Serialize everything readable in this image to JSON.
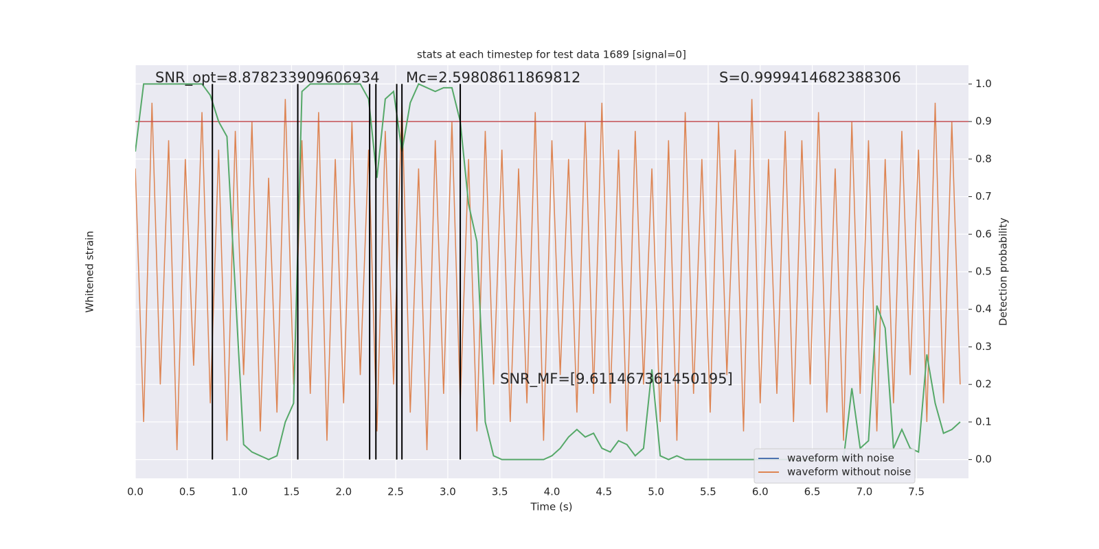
{
  "chart_data": {
    "type": "line",
    "title": "stats at each timestep for test data 1689 [signal=0]",
    "xlabel": "Time (s)",
    "ylabel": "Whitened strain",
    "y2label": "Detection probability",
    "xlim": [
      0,
      8
    ],
    "xticks": [
      {
        "value": 0,
        "label": "0.0"
      },
      {
        "value": 0.5,
        "label": "0.5"
      },
      {
        "value": 1,
        "label": "1.0"
      },
      {
        "value": 1.5,
        "label": "1.5"
      },
      {
        "value": 2,
        "label": "2.0"
      },
      {
        "value": 2.5,
        "label": "2.5"
      },
      {
        "value": 3,
        "label": "3.0"
      },
      {
        "value": 3.5,
        "label": "3.5"
      },
      {
        "value": 4,
        "label": "4.0"
      },
      {
        "value": 4.5,
        "label": "4.5"
      },
      {
        "value": 5,
        "label": "5.0"
      },
      {
        "value": 5.5,
        "label": "5.5"
      },
      {
        "value": 6,
        "label": "6.0"
      },
      {
        "value": 6.5,
        "label": "6.5"
      },
      {
        "value": 7,
        "label": "7.0"
      },
      {
        "value": 7.5,
        "label": "7.5"
      }
    ],
    "ylim": [
      -1.1,
      1.1
    ],
    "y2lim": [
      -0.05,
      1.05
    ],
    "y2ticks": [
      {
        "value": 0,
        "label": "0.0"
      },
      {
        "value": 0.1,
        "label": "0.1"
      },
      {
        "value": 0.2,
        "label": "0.2"
      },
      {
        "value": 0.3,
        "label": "0.3"
      },
      {
        "value": 0.4,
        "label": "0.4"
      },
      {
        "value": 0.5,
        "label": "0.5"
      },
      {
        "value": 0.6,
        "label": "0.6"
      },
      {
        "value": 0.7,
        "label": "0.7"
      },
      {
        "value": 0.8,
        "label": "0.8"
      },
      {
        "value": 0.9,
        "label": "0.9"
      },
      {
        "value": 1,
        "label": "1.0"
      }
    ],
    "grid": true,
    "legend": "lower right",
    "x": [
      0,
      0.08,
      0.16,
      0.24,
      0.32,
      0.4,
      0.48,
      0.56,
      0.64,
      0.72,
      0.8,
      0.88,
      0.96,
      1.04,
      1.12,
      1.2,
      1.28,
      1.36,
      1.44,
      1.52,
      1.6,
      1.68,
      1.76,
      1.84,
      1.92,
      2,
      2.08,
      2.16,
      2.24,
      2.32,
      2.4,
      2.48,
      2.56,
      2.64,
      2.72,
      2.8,
      2.88,
      2.96,
      3.04,
      3.12,
      3.2,
      3.28,
      3.36,
      3.44,
      3.52,
      3.6,
      3.68,
      3.76,
      3.84,
      3.92,
      4,
      4.08,
      4.16,
      4.24,
      4.32,
      4.4,
      4.48,
      4.56,
      4.64,
      4.72,
      4.8,
      4.88,
      4.96,
      5.04,
      5.12,
      5.2,
      5.28,
      5.36,
      5.44,
      5.52,
      5.6,
      5.68,
      5.76,
      5.84,
      5.92,
      6,
      6.08,
      6.16,
      6.24,
      6.32,
      6.4,
      6.48,
      6.56,
      6.64,
      6.72,
      6.8,
      6.88,
      6.96,
      7.04,
      7.12,
      7.2,
      7.28,
      7.36,
      7.44,
      7.52,
      7.6,
      7.68,
      7.76,
      7.84,
      7.92
    ],
    "series": [
      {
        "name": "waveform with noise",
        "color": "#4c72b0",
        "values": [
          null,
          null,
          null,
          null,
          null,
          null,
          null,
          null,
          null,
          null,
          null,
          null,
          null,
          null,
          null,
          null,
          null,
          null,
          null,
          null,
          null,
          null,
          null,
          null,
          null,
          null,
          null,
          null,
          null,
          null,
          null,
          null,
          null,
          null,
          null,
          null,
          null,
          null,
          null,
          null,
          null,
          null,
          null,
          null,
          null,
          null,
          null,
          null,
          null,
          null,
          null,
          null,
          null,
          null,
          null,
          null,
          null,
          null,
          null,
          null,
          null,
          null,
          null,
          null,
          null,
          null,
          null,
          null,
          null,
          null,
          null,
          null,
          null,
          null,
          null,
          null,
          null,
          null,
          null,
          null,
          null,
          null,
          null,
          null,
          null,
          null,
          null,
          null,
          null,
          null,
          null,
          null,
          null,
          null,
          null,
          null,
          null,
          null,
          null,
          null
        ]
      },
      {
        "name": "waveform without noise",
        "color": "#dd8452",
        "values": [
          0.55,
          -0.8,
          0.9,
          -0.6,
          0.7,
          -0.95,
          0.6,
          -0.5,
          0.85,
          -0.7,
          0.65,
          -0.9,
          0.75,
          -0.55,
          0.8,
          -0.85,
          0.5,
          -0.75,
          0.92,
          -0.6,
          0.7,
          -0.65,
          0.85,
          -0.9,
          0.6,
          -0.7,
          0.8,
          -0.55,
          0.65,
          -0.85,
          0.75,
          -0.6,
          0.9,
          -0.75,
          0.55,
          -0.95,
          0.7,
          -0.65,
          0.8,
          -0.7,
          0.6,
          -0.85,
          0.75,
          -0.6,
          0.65,
          -0.8,
          0.55,
          -0.7,
          0.85,
          -0.9,
          0.7,
          -0.55,
          0.6,
          -0.75,
          0.8,
          -0.65,
          0.9,
          -0.7,
          0.65,
          -0.85,
          0.75,
          -0.6,
          0.55,
          -0.8,
          0.7,
          -0.9,
          0.85,
          -0.65,
          0.6,
          -0.75,
          0.8,
          -0.55,
          0.65,
          -0.85,
          0.92,
          -0.7,
          0.6,
          -0.65,
          0.75,
          -0.8,
          0.7,
          -0.6,
          0.85,
          -0.75,
          0.55,
          -0.9,
          0.8,
          -0.65,
          0.7,
          -0.85,
          0.6,
          -0.7,
          0.75,
          -0.55,
          0.65,
          -0.8,
          0.9,
          -0.7,
          0.8,
          -0.6
        ]
      },
      {
        "color": "#55a868",
        "axis": "y2",
        "values": [
          0.82,
          1,
          1,
          1,
          1,
          1,
          1,
          1,
          1,
          0.97,
          0.9,
          0.86,
          0.45,
          0.04,
          0.02,
          0.01,
          0,
          0.01,
          0.1,
          0.15,
          0.98,
          1,
          1,
          1,
          1,
          1,
          1,
          1,
          0.96,
          0.75,
          0.96,
          0.98,
          0.82,
          0.95,
          1,
          0.99,
          0.98,
          0.99,
          0.99,
          0.9,
          0.68,
          0.58,
          0.1,
          0.01,
          0,
          0,
          0,
          0,
          0,
          0,
          0.01,
          0.03,
          0.06,
          0.08,
          0.06,
          0.07,
          0.03,
          0.02,
          0.05,
          0.04,
          0.01,
          0.03,
          0.24,
          0.01,
          0,
          0.01,
          0,
          0,
          0,
          0,
          0,
          0,
          0,
          0,
          0,
          0,
          0,
          0,
          0,
          0,
          0,
          0,
          0,
          0,
          0,
          0,
          0.19,
          0.03,
          0.05,
          0.41,
          0.35,
          0.03,
          0.08,
          0.03,
          0.02,
          0.28,
          0.15,
          0.07,
          0.08,
          0.1
        ]
      }
    ],
    "threshold": {
      "value": 0.9,
      "color": "#c44e52",
      "axis": "y2"
    },
    "vlines": [
      0.74,
      1.56,
      2.25,
      2.31,
      2.51,
      2.56,
      3.12
    ],
    "annotations": [
      "SNR_opt=8.878233909606934",
      "Mc=2.59808611869812",
      "S=0.9999414682388306",
      "SNR_MF=[9.611467361450195]"
    ]
  }
}
